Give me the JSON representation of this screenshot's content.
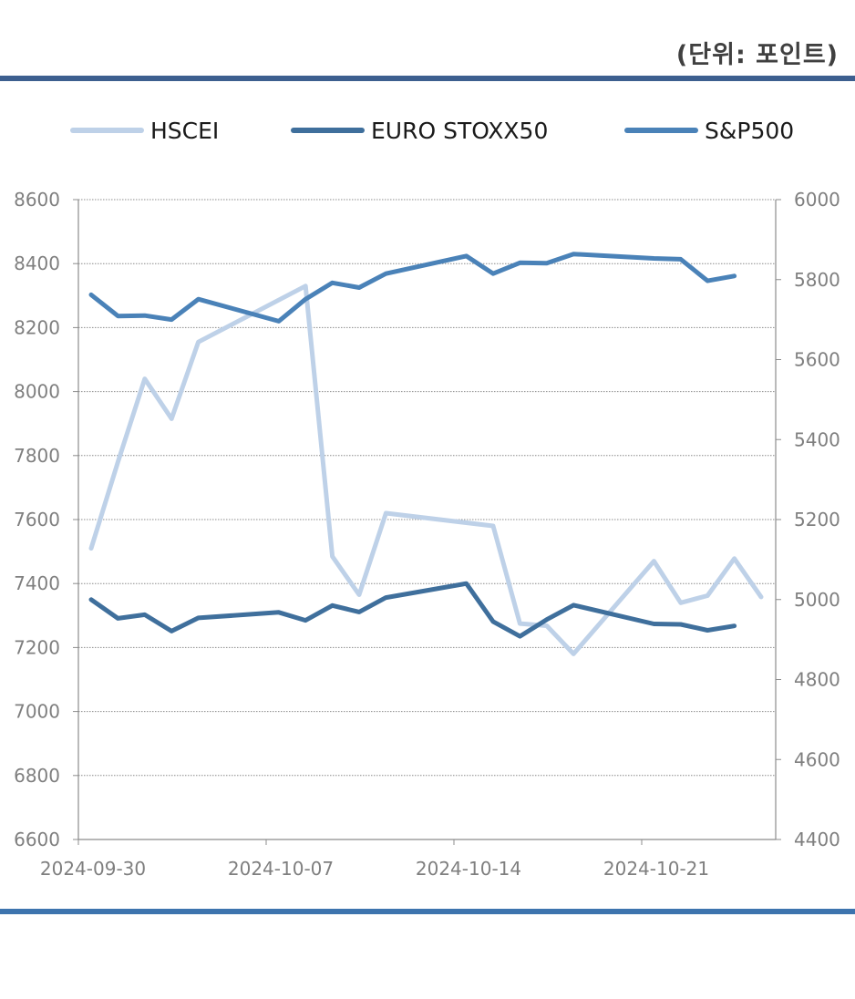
{
  "unit_label": "(단위: 포인트)",
  "chart_data": {
    "type": "line",
    "title": "",
    "xlabel": "",
    "ylabel": "",
    "grid": true,
    "legend_position": "top",
    "x_ticks": [
      "2024-09-30",
      "2024-10-07",
      "2024-10-14",
      "2024-10-21"
    ],
    "x_range": [
      "2024-09-30",
      "2024-10-25"
    ],
    "y_left": {
      "min": 6600,
      "max": 8600,
      "ticks": [
        6600,
        6800,
        7000,
        7200,
        7400,
        7600,
        7800,
        8000,
        8200,
        8400,
        8600
      ]
    },
    "y_right": {
      "min": 4400,
      "max": 6000,
      "ticks": [
        4400,
        4600,
        4800,
        5000,
        5200,
        5400,
        5600,
        5800,
        6000
      ]
    },
    "series": [
      {
        "name": "HSCEI",
        "axis": "left",
        "color": "#bed1e8",
        "x": [
          "2024-09-30",
          "2024-10-01",
          "2024-10-02",
          "2024-10-03",
          "2024-10-04",
          "2024-10-08",
          "2024-10-09",
          "2024-10-10",
          "2024-10-11",
          "2024-10-15",
          "2024-10-16",
          "2024-10-17",
          "2024-10-18",
          "2024-10-21",
          "2024-10-22",
          "2024-10-23",
          "2024-10-24",
          "2024-10-25"
        ],
        "values": [
          7510,
          7780,
          8040,
          7915,
          8155,
          8330,
          7485,
          7365,
          7620,
          7580,
          7275,
          7268,
          7180,
          7470,
          7340,
          7362,
          7478,
          7358
        ]
      },
      {
        "name": "EURO STOXX50",
        "axis": "right",
        "color": "#3f6f9c",
        "x": [
          "2024-09-30",
          "2024-10-01",
          "2024-10-02",
          "2024-10-03",
          "2024-10-04",
          "2024-10-07",
          "2024-10-08",
          "2024-10-09",
          "2024-10-10",
          "2024-10-11",
          "2024-10-14",
          "2024-10-15",
          "2024-10-16",
          "2024-10-17",
          "2024-10-18",
          "2024-10-21",
          "2024-10-22",
          "2024-10-23",
          "2024-10-24"
        ],
        "values": [
          5000,
          4953,
          4962,
          4921,
          4954,
          4968,
          4948,
          4985,
          4969,
          5005,
          5040,
          4945,
          4908,
          4950,
          4986,
          4939,
          4938,
          4923,
          4934
        ]
      },
      {
        "name": "S&P500",
        "axis": "right",
        "color": "#4a82b8",
        "x": [
          "2024-09-30",
          "2024-10-01",
          "2024-10-02",
          "2024-10-03",
          "2024-10-04",
          "2024-10-07",
          "2024-10-08",
          "2024-10-09",
          "2024-10-10",
          "2024-10-11",
          "2024-10-14",
          "2024-10-15",
          "2024-10-16",
          "2024-10-17",
          "2024-10-18",
          "2024-10-21",
          "2024-10-22",
          "2024-10-23",
          "2024-10-24"
        ],
        "values": [
          5762,
          5709,
          5710,
          5700,
          5751,
          5696,
          5751,
          5792,
          5780,
          5815,
          5859,
          5815,
          5842,
          5841,
          5864,
          5853,
          5851,
          5797,
          5809
        ]
      }
    ]
  }
}
